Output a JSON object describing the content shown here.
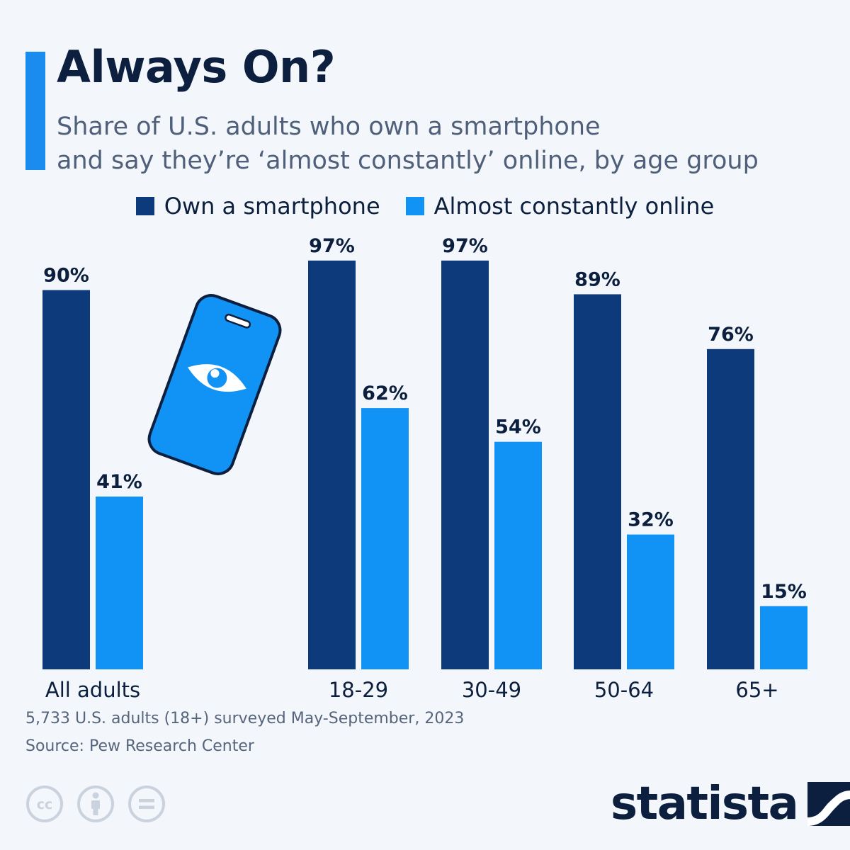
{
  "header": {
    "title": "Always On?",
    "subtitle_line1": "Share of U.S. adults who own a smartphone",
    "subtitle_line2": "and say they’re ‘almost constantly’ online, by age group"
  },
  "footer": {
    "note": "5,733 U.S. adults (18+) surveyed May-September, 2023",
    "source": "Source: Pew Research Center",
    "brand": "statista"
  },
  "colors": {
    "accent": "#1a8cf0",
    "own": "#0d3a7a",
    "online": "#1192f5",
    "title": "#0c1f3e"
  },
  "icons": {
    "illustration": "smartphone-eye-icon",
    "license": [
      "cc-icon",
      "attribution-icon",
      "no-derivatives-icon"
    ],
    "brand": "statista-logo-icon"
  },
  "chart_data": {
    "type": "bar",
    "categories": [
      "All adults",
      "18-29",
      "30-49",
      "50-64",
      "65+"
    ],
    "series": [
      {
        "name": "Own a smartphone",
        "values": [
          90,
          97,
          97,
          89,
          76
        ],
        "color": "#0d3a7a"
      },
      {
        "name": "Almost constantly online",
        "values": [
          41,
          62,
          54,
          32,
          15
        ],
        "color": "#1192f5"
      }
    ],
    "value_suffix": "%",
    "ylim": [
      0,
      100
    ],
    "grid": false,
    "legend": "top-center"
  }
}
